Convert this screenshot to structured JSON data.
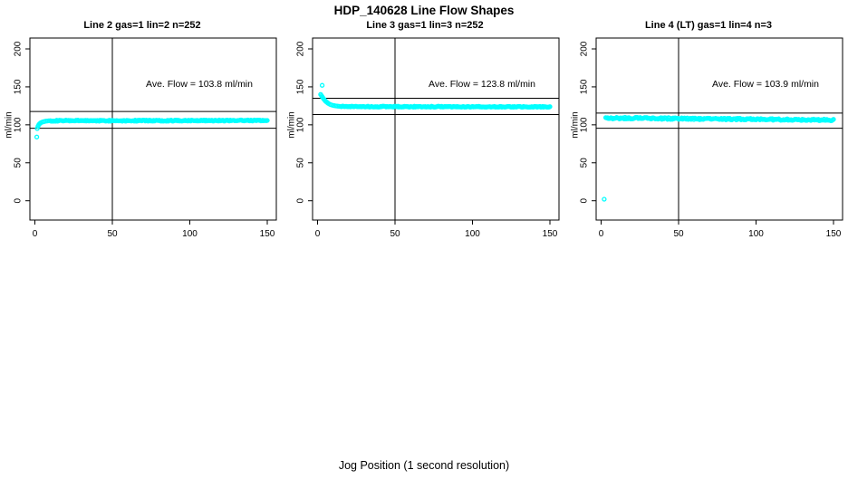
{
  "chart_data": {
    "type": "scatter",
    "title": "HDP_140628  Line Flow Shapes",
    "xlabel": "Jog Position (1 second resolution)",
    "ylabel": "ml/min",
    "point_color": "#00FFFF",
    "axis_color": "#000000",
    "xticks": [
      0,
      50,
      100,
      150
    ],
    "yticks": [
      0,
      50,
      100,
      150,
      200
    ],
    "xlim": [
      -3,
      156
    ],
    "ylim": [
      -25,
      214
    ],
    "vline_x": 50,
    "legend": "none",
    "grid": "off",
    "panels": [
      {
        "title": "Line 2 gas=1 lin=2 n=252",
        "ave_flow": 103.8,
        "ave_flow_label": "Ave. Flow =  103.8  ml/min",
        "hlines": [
          117.5,
          95.5
        ],
        "outliers": [
          [
            1.2,
            84
          ]
        ],
        "transient": [
          [
            1.5,
            95
          ],
          [
            2,
            98
          ],
          [
            2.5,
            100
          ],
          [
            3,
            101.3
          ],
          [
            3.5,
            102.2
          ],
          [
            4,
            102.9
          ],
          [
            5,
            103.8
          ],
          [
            6,
            104.4
          ],
          [
            7,
            104.8
          ],
          [
            8,
            105.1
          ],
          [
            9,
            105.3
          ],
          [
            10,
            105.4
          ]
        ],
        "plateau": {
          "x_start": 10.5,
          "x_end": 150,
          "y_start": 105.4,
          "y_end": 105.8,
          "n": 235,
          "noise": 0.7
        }
      },
      {
        "title": "Line 3 gas=1 lin=3 n=252",
        "ave_flow": 123.8,
        "ave_flow_label": "Ave. Flow =  123.8  ml/min",
        "hlines": [
          135,
          113.5
        ],
        "outliers": [
          [
            3,
            152
          ]
        ],
        "transient": [
          [
            2,
            140
          ],
          [
            2.5,
            138.5
          ],
          [
            3,
            137
          ],
          [
            3.5,
            135.5
          ],
          [
            4,
            134
          ],
          [
            4.5,
            132.8
          ],
          [
            5,
            131.6
          ],
          [
            5.5,
            130.6
          ],
          [
            6,
            129.7
          ],
          [
            6.5,
            128.9
          ],
          [
            7,
            128.2
          ],
          [
            8,
            127
          ],
          [
            9,
            126.2
          ],
          [
            10,
            125.6
          ],
          [
            11,
            125.2
          ],
          [
            12,
            124.9
          ],
          [
            13,
            124.6
          ],
          [
            14,
            124.4
          ],
          [
            15,
            124.2
          ]
        ],
        "plateau": {
          "x_start": 15.5,
          "x_end": 150,
          "y_start": 124.0,
          "y_end": 123.7,
          "n": 230,
          "noise": 0.6
        }
      },
      {
        "title": "Line 4 (LT) gas=1 lin=4 n=3",
        "ave_flow": 103.9,
        "ave_flow_label": "Ave. Flow =  103.9  ml/min",
        "hlines": [
          115.5,
          95.5
        ],
        "outliers": [
          [
            2,
            2
          ]
        ],
        "transient": [
          [
            3,
            109.5
          ],
          [
            3.6,
            109.1
          ],
          [
            4.2,
            109.4
          ]
        ],
        "plateau": {
          "x_start": 4.5,
          "x_end": 150,
          "y_start": 109.0,
          "y_end": 106.5,
          "n": 240,
          "noise": 1.1
        }
      }
    ]
  }
}
